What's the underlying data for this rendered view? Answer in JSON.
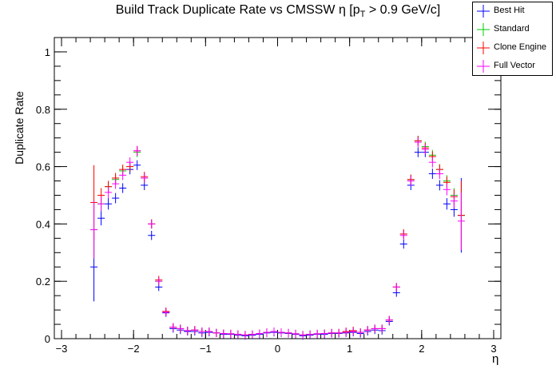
{
  "chart_data": {
    "type": "scatter",
    "title_main": "Build Track Duplicate Rate vs CMSSW η [p",
    "title_sub": "T",
    "title_tail": " > 0.9 GeV/c]",
    "xlabel": "η",
    "ylabel": "Duplicate Rate",
    "xlim": [
      -3.1,
      3.1
    ],
    "ylim": [
      0,
      1.05
    ],
    "x_ticks": [
      "−3",
      "−2",
      "−1",
      "0",
      "1",
      "2",
      "3"
    ],
    "y_ticks": [
      "0",
      "0.2",
      "0.4",
      "0.6",
      "0.8",
      "1"
    ],
    "x_tick_values": [
      -3,
      -2,
      -1,
      0,
      1,
      2,
      3
    ],
    "y_tick_values": [
      0,
      0.2,
      0.4,
      0.6,
      0.8,
      1
    ],
    "legend_position": "top-right",
    "x": [
      -2.55,
      -2.45,
      -2.35,
      -2.25,
      -2.15,
      -2.05,
      -1.95,
      -1.85,
      -1.75,
      -1.65,
      -1.55,
      -1.45,
      -1.35,
      -1.25,
      -1.15,
      -1.05,
      -0.95,
      -0.85,
      -0.75,
      -0.65,
      -0.55,
      -0.45,
      -0.35,
      -0.25,
      -0.15,
      -0.05,
      0.05,
      0.15,
      0.25,
      0.35,
      0.45,
      0.55,
      0.65,
      0.75,
      0.85,
      0.95,
      1.05,
      1.15,
      1.25,
      1.35,
      1.45,
      1.55,
      1.65,
      1.75,
      1.85,
      1.95,
      2.05,
      2.15,
      2.25,
      2.35,
      2.45,
      2.55
    ],
    "series": [
      {
        "name": "Best Hit",
        "color": "#0000ff",
        "values": [
          0.25,
          0.42,
          0.47,
          0.49,
          0.525,
          0.59,
          0.605,
          0.535,
          0.36,
          0.18,
          0.09,
          0.035,
          0.03,
          0.025,
          0.025,
          0.02,
          0.022,
          0.02,
          0.015,
          0.015,
          0.012,
          0.01,
          0.012,
          0.015,
          0.02,
          0.022,
          0.02,
          0.018,
          0.015,
          0.01,
          0.012,
          0.015,
          0.015,
          0.018,
          0.018,
          0.02,
          0.022,
          0.018,
          0.025,
          0.03,
          0.028,
          0.06,
          0.16,
          0.33,
          0.535,
          0.65,
          0.65,
          0.575,
          0.535,
          0.47,
          0.45,
          0.43
        ],
        "errors": [
          0.12,
          0.025,
          0.02,
          0.018,
          0.017,
          0.017,
          0.017,
          0.017,
          0.016,
          0.012,
          0.007,
          0.004,
          0.004,
          0.003,
          0.003,
          0.003,
          0.003,
          0.003,
          0.003,
          0.003,
          0.003,
          0.003,
          0.003,
          0.003,
          0.003,
          0.003,
          0.003,
          0.003,
          0.003,
          0.003,
          0.003,
          0.003,
          0.003,
          0.003,
          0.003,
          0.003,
          0.003,
          0.003,
          0.004,
          0.004,
          0.004,
          0.006,
          0.012,
          0.016,
          0.017,
          0.017,
          0.017,
          0.018,
          0.018,
          0.02,
          0.025,
          0.13
        ]
      },
      {
        "name": "Standard",
        "color": "#00cc00",
        "values": [
          0.38,
          0.47,
          0.53,
          0.555,
          0.585,
          0.6,
          0.65,
          0.56,
          0.4,
          0.2,
          0.092,
          0.04,
          0.035,
          0.028,
          0.03,
          0.025,
          0.025,
          0.02,
          0.018,
          0.017,
          0.015,
          0.013,
          0.015,
          0.018,
          0.022,
          0.025,
          0.022,
          0.02,
          0.017,
          0.013,
          0.015,
          0.017,
          0.018,
          0.02,
          0.02,
          0.022,
          0.025,
          0.022,
          0.03,
          0.035,
          0.035,
          0.065,
          0.18,
          0.365,
          0.555,
          0.69,
          0.67,
          0.64,
          0.59,
          0.55,
          0.5,
          0.43
        ],
        "errors": [
          0.1,
          0.025,
          0.02,
          0.018,
          0.017,
          0.017,
          0.017,
          0.017,
          0.016,
          0.012,
          0.007,
          0.004,
          0.004,
          0.003,
          0.003,
          0.003,
          0.003,
          0.003,
          0.003,
          0.003,
          0.003,
          0.003,
          0.003,
          0.003,
          0.003,
          0.003,
          0.003,
          0.003,
          0.003,
          0.003,
          0.003,
          0.003,
          0.003,
          0.003,
          0.003,
          0.003,
          0.003,
          0.003,
          0.004,
          0.004,
          0.004,
          0.006,
          0.012,
          0.016,
          0.017,
          0.017,
          0.017,
          0.018,
          0.018,
          0.02,
          0.025,
          0.1
        ]
      },
      {
        "name": "Clone Engine",
        "color": "#ff0000",
        "values": [
          0.475,
          0.5,
          0.53,
          0.56,
          0.59,
          0.6,
          0.655,
          0.565,
          0.4,
          0.205,
          0.095,
          0.04,
          0.035,
          0.028,
          0.03,
          0.025,
          0.025,
          0.02,
          0.018,
          0.017,
          0.015,
          0.013,
          0.015,
          0.018,
          0.022,
          0.025,
          0.022,
          0.02,
          0.017,
          0.013,
          0.015,
          0.017,
          0.018,
          0.02,
          0.02,
          0.025,
          0.028,
          0.022,
          0.03,
          0.035,
          0.035,
          0.065,
          0.18,
          0.365,
          0.555,
          0.69,
          0.665,
          0.635,
          0.59,
          0.545,
          0.495,
          0.43
        ],
        "errors": [
          0.13,
          0.025,
          0.02,
          0.018,
          0.017,
          0.017,
          0.017,
          0.017,
          0.016,
          0.012,
          0.007,
          0.004,
          0.004,
          0.003,
          0.003,
          0.003,
          0.003,
          0.003,
          0.003,
          0.003,
          0.003,
          0.003,
          0.003,
          0.003,
          0.003,
          0.003,
          0.003,
          0.003,
          0.003,
          0.003,
          0.003,
          0.003,
          0.003,
          0.003,
          0.003,
          0.003,
          0.003,
          0.003,
          0.004,
          0.004,
          0.004,
          0.006,
          0.012,
          0.016,
          0.017,
          0.017,
          0.017,
          0.018,
          0.018,
          0.02,
          0.025,
          0.12
        ]
      },
      {
        "name": "Full Vector",
        "color": "#ff00ff",
        "values": [
          0.38,
          0.47,
          0.51,
          0.54,
          0.57,
          0.615,
          0.655,
          0.56,
          0.4,
          0.2,
          0.092,
          0.04,
          0.035,
          0.028,
          0.03,
          0.025,
          0.025,
          0.02,
          0.018,
          0.017,
          0.015,
          0.013,
          0.015,
          0.018,
          0.022,
          0.025,
          0.022,
          0.02,
          0.017,
          0.013,
          0.015,
          0.017,
          0.018,
          0.02,
          0.02,
          0.022,
          0.025,
          0.022,
          0.03,
          0.035,
          0.035,
          0.065,
          0.18,
          0.36,
          0.55,
          0.685,
          0.66,
          0.615,
          0.575,
          0.52,
          0.48,
          0.41
        ],
        "errors": [
          0.1,
          0.025,
          0.02,
          0.018,
          0.017,
          0.017,
          0.017,
          0.017,
          0.016,
          0.012,
          0.007,
          0.004,
          0.004,
          0.003,
          0.003,
          0.003,
          0.003,
          0.003,
          0.003,
          0.003,
          0.003,
          0.003,
          0.003,
          0.003,
          0.003,
          0.003,
          0.003,
          0.003,
          0.003,
          0.003,
          0.003,
          0.003,
          0.003,
          0.003,
          0.003,
          0.003,
          0.003,
          0.003,
          0.004,
          0.004,
          0.004,
          0.006,
          0.012,
          0.016,
          0.017,
          0.017,
          0.017,
          0.018,
          0.018,
          0.02,
          0.025,
          0.1
        ]
      }
    ]
  }
}
